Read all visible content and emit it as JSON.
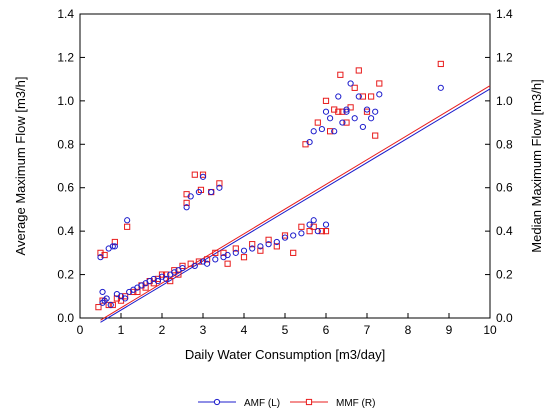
{
  "chart_data": {
    "type": "scatter",
    "xlabel": "Daily Water Consumption [m3/day]",
    "ylabel_left": "Average Maximum Flow [m3/h]",
    "ylabel_right": "Median Maximum Flow [m3/h]",
    "xlim": [
      0,
      10
    ],
    "ylim": [
      0,
      1.4
    ],
    "x_ticks": [
      "0",
      "1",
      "2",
      "3",
      "4",
      "5",
      "6",
      "7",
      "8",
      "9",
      "10"
    ],
    "y_ticks": [
      "0.0",
      "0.2",
      "0.4",
      "0.6",
      "0.8",
      "1.0",
      "1.2",
      "1.4"
    ],
    "grid": false,
    "legend_position": "bottom",
    "series": [
      {
        "name": "AMF (L)",
        "marker": "circle",
        "color": "#1c1ccc",
        "trend": [
          [
            0.5,
            -0.02
          ],
          [
            10.0,
            1.055
          ]
        ],
        "points": [
          [
            0.5,
            0.28
          ],
          [
            0.55,
            0.12
          ],
          [
            0.55,
            0.07
          ],
          [
            0.6,
            0.08
          ],
          [
            0.65,
            0.09
          ],
          [
            0.7,
            0.32
          ],
          [
            0.75,
            0.06
          ],
          [
            0.8,
            0.33
          ],
          [
            0.85,
            0.33
          ],
          [
            0.9,
            0.11
          ],
          [
            1.0,
            0.1
          ],
          [
            1.1,
            0.09
          ],
          [
            1.15,
            0.45
          ],
          [
            1.2,
            0.12
          ],
          [
            1.3,
            0.13
          ],
          [
            1.4,
            0.14
          ],
          [
            1.5,
            0.15
          ],
          [
            1.6,
            0.16
          ],
          [
            1.7,
            0.17
          ],
          [
            1.8,
            0.18
          ],
          [
            1.9,
            0.17
          ],
          [
            2.0,
            0.19
          ],
          [
            2.1,
            0.18
          ],
          [
            2.2,
            0.2
          ],
          [
            2.3,
            0.21
          ],
          [
            2.4,
            0.22
          ],
          [
            2.5,
            0.23
          ],
          [
            2.6,
            0.51
          ],
          [
            2.7,
            0.56
          ],
          [
            2.8,
            0.24
          ],
          [
            2.9,
            0.58
          ],
          [
            3.0,
            0.65
          ],
          [
            3.0,
            0.26
          ],
          [
            3.1,
            0.25
          ],
          [
            3.2,
            0.58
          ],
          [
            3.3,
            0.27
          ],
          [
            3.4,
            0.6
          ],
          [
            3.5,
            0.28
          ],
          [
            3.6,
            0.29
          ],
          [
            3.8,
            0.3
          ],
          [
            4.0,
            0.31
          ],
          [
            4.2,
            0.32
          ],
          [
            4.4,
            0.33
          ],
          [
            4.6,
            0.34
          ],
          [
            4.8,
            0.35
          ],
          [
            5.0,
            0.37
          ],
          [
            5.2,
            0.38
          ],
          [
            5.4,
            0.39
          ],
          [
            5.6,
            0.43
          ],
          [
            5.6,
            0.81
          ],
          [
            5.7,
            0.45
          ],
          [
            5.7,
            0.86
          ],
          [
            5.8,
            0.4
          ],
          [
            5.9,
            0.87
          ],
          [
            6.0,
            0.43
          ],
          [
            6.0,
            0.95
          ],
          [
            6.1,
            0.92
          ],
          [
            6.2,
            0.86
          ],
          [
            6.3,
            1.02
          ],
          [
            6.4,
            0.9
          ],
          [
            6.5,
            0.96
          ],
          [
            6.5,
            0.95
          ],
          [
            6.6,
            1.08
          ],
          [
            6.7,
            0.92
          ],
          [
            6.8,
            1.02
          ],
          [
            6.9,
            0.88
          ],
          [
            7.0,
            0.96
          ],
          [
            7.1,
            0.92
          ],
          [
            7.2,
            0.95
          ],
          [
            7.3,
            1.03
          ],
          [
            8.8,
            1.06
          ]
        ]
      },
      {
        "name": "MMF (R)",
        "marker": "square",
        "color": "#e81c1c",
        "trend": [
          [
            0.5,
            -0.01
          ],
          [
            10.0,
            1.07
          ]
        ],
        "points": [
          [
            0.45,
            0.05
          ],
          [
            0.5,
            0.3
          ],
          [
            0.55,
            0.08
          ],
          [
            0.6,
            0.29
          ],
          [
            0.7,
            0.06
          ],
          [
            0.8,
            0.06
          ],
          [
            0.85,
            0.35
          ],
          [
            0.9,
            0.09
          ],
          [
            1.0,
            0.08
          ],
          [
            1.1,
            0.1
          ],
          [
            1.15,
            0.42
          ],
          [
            1.3,
            0.12
          ],
          [
            1.4,
            0.12
          ],
          [
            1.5,
            0.15
          ],
          [
            1.6,
            0.14
          ],
          [
            1.7,
            0.17
          ],
          [
            1.8,
            0.16
          ],
          [
            1.9,
            0.18
          ],
          [
            2.0,
            0.2
          ],
          [
            2.1,
            0.2
          ],
          [
            2.2,
            0.17
          ],
          [
            2.3,
            0.22
          ],
          [
            2.4,
            0.2
          ],
          [
            2.5,
            0.24
          ],
          [
            2.6,
            0.57
          ],
          [
            2.6,
            0.53
          ],
          [
            2.7,
            0.25
          ],
          [
            2.8,
            0.66
          ],
          [
            2.9,
            0.26
          ],
          [
            2.95,
            0.59
          ],
          [
            3.0,
            0.66
          ],
          [
            3.1,
            0.27
          ],
          [
            3.2,
            0.58
          ],
          [
            3.3,
            0.3
          ],
          [
            3.4,
            0.62
          ],
          [
            3.5,
            0.3
          ],
          [
            3.6,
            0.25
          ],
          [
            3.8,
            0.32
          ],
          [
            4.0,
            0.28
          ],
          [
            4.2,
            0.34
          ],
          [
            4.4,
            0.31
          ],
          [
            4.6,
            0.36
          ],
          [
            4.8,
            0.33
          ],
          [
            5.0,
            0.38
          ],
          [
            5.2,
            0.3
          ],
          [
            5.4,
            0.42
          ],
          [
            5.5,
            0.8
          ],
          [
            5.6,
            0.4
          ],
          [
            5.7,
            0.42
          ],
          [
            5.8,
            0.9
          ],
          [
            5.9,
            0.4
          ],
          [
            6.0,
            0.4
          ],
          [
            6.0,
            1.0
          ],
          [
            6.1,
            0.86
          ],
          [
            6.2,
            0.96
          ],
          [
            6.3,
            0.95
          ],
          [
            6.35,
            1.12
          ],
          [
            6.4,
            0.95
          ],
          [
            6.5,
            0.9
          ],
          [
            6.6,
            0.97
          ],
          [
            6.7,
            1.06
          ],
          [
            6.8,
            1.14
          ],
          [
            6.9,
            1.02
          ],
          [
            7.0,
            0.95
          ],
          [
            7.1,
            1.02
          ],
          [
            7.2,
            0.84
          ],
          [
            7.3,
            1.08
          ],
          [
            8.8,
            1.17
          ]
        ]
      }
    ]
  }
}
